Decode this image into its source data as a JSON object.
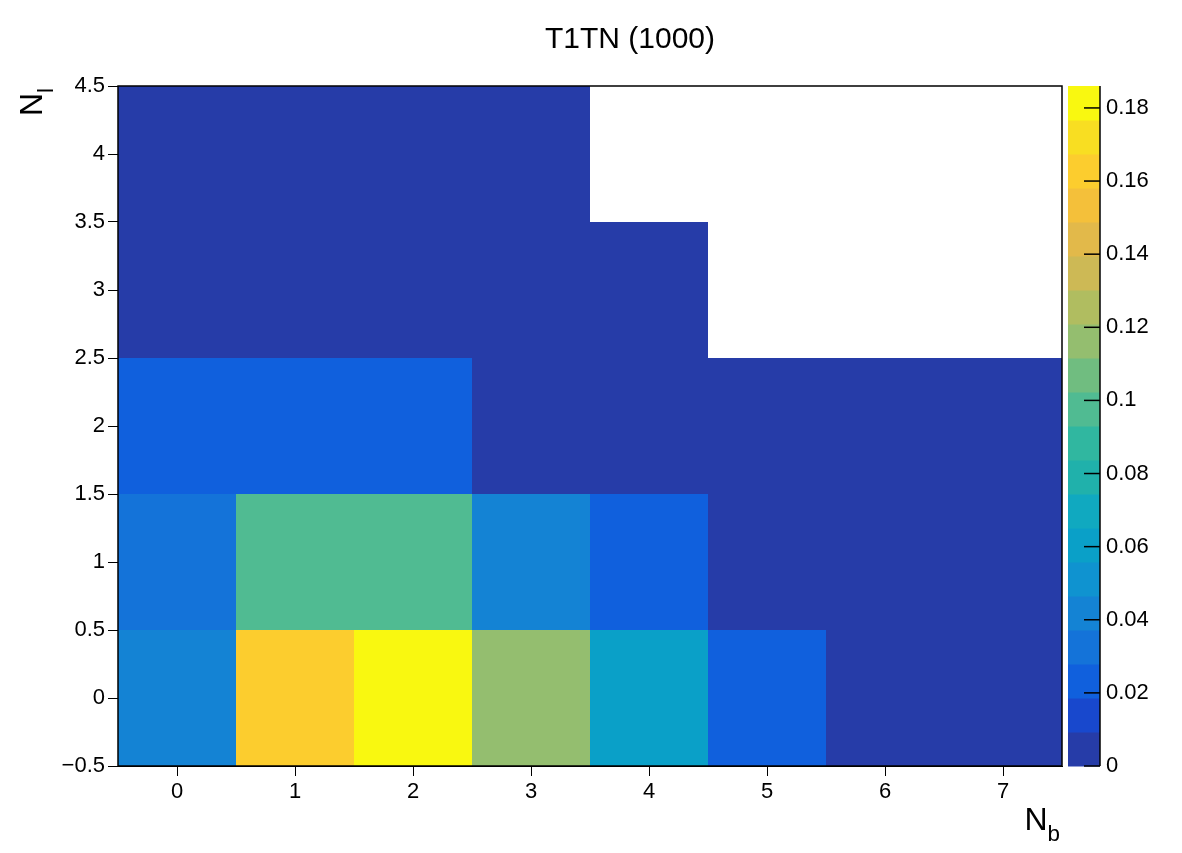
{
  "chart_data": {
    "type": "heatmap",
    "title": "T1TN (1000)",
    "xlabel": "N$_{b}$",
    "ylabel": "N$_{l}$",
    "categories": [
      "0",
      "1",
      "2",
      "3",
      "4",
      "5",
      "6",
      "7"
    ],
    "ylim": [
      -0.5,
      4.5
    ],
    "yticks": [
      -0.5,
      0,
      0.5,
      1,
      1.5,
      2,
      2.5,
      3,
      3.5,
      4,
      4.5
    ],
    "cells": [
      [
        0.005,
        0.005,
        0.005,
        0.005,
        null,
        null,
        null,
        null
      ],
      [
        0.005,
        0.005,
        0.005,
        0.005,
        0.005,
        null,
        null,
        null
      ],
      [
        0.02,
        0.024,
        0.024,
        0.005,
        0.005,
        0.005,
        0.005,
        0.005
      ],
      [
        0.03,
        0.1,
        0.1,
        0.043,
        0.024,
        0.005,
        0.005,
        0.005
      ],
      [
        0.043,
        0.165,
        0.186,
        0.12,
        0.06,
        0.024,
        0.005,
        0.005
      ]
    ],
    "clim": [
      0,
      0.186
    ],
    "cticks": [
      0,
      0.02,
      0.04,
      0.06,
      0.08,
      0.1,
      0.12,
      0.14,
      0.16,
      0.18
    ],
    "grid": false
  }
}
